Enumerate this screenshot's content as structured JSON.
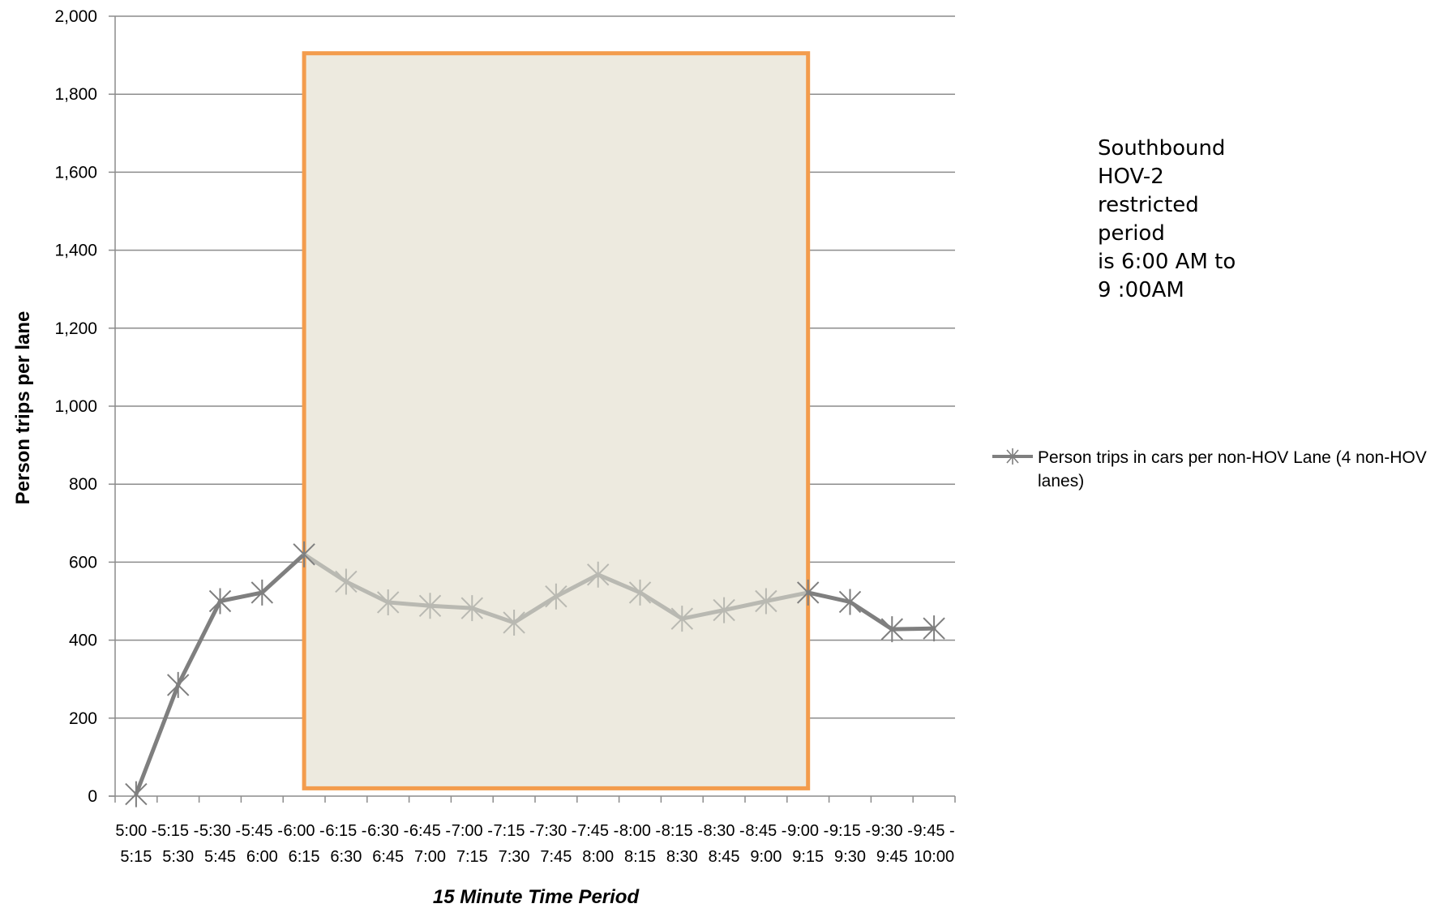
{
  "chart_data": {
    "type": "line",
    "title": "",
    "xlabel": "15 Minute Time Period",
    "ylabel": "Person trips per lane",
    "ylim": [
      0,
      2000
    ],
    "y_ticks": [
      "0",
      "200",
      "400",
      "600",
      "800",
      "1,000",
      "1,200",
      "1,400",
      "1,600",
      "1,800",
      "2,000"
    ],
    "y_tick_values": [
      0,
      200,
      400,
      600,
      800,
      1000,
      1200,
      1400,
      1600,
      1800,
      2000
    ],
    "grid": true,
    "legend_position": "right",
    "categories": [
      [
        "5:00 -",
        "5:15"
      ],
      [
        "5:15 -",
        "5:30"
      ],
      [
        "5:30 -",
        "5:45"
      ],
      [
        "5:45 -",
        "6:00"
      ],
      [
        "6:00 -",
        "6:15"
      ],
      [
        "6:15 -",
        "6:30"
      ],
      [
        "6:30 -",
        "6:45"
      ],
      [
        "6:45 -",
        "7:00"
      ],
      [
        "7:00 -",
        "7:15"
      ],
      [
        "7:15 -",
        "7:30"
      ],
      [
        "7:30 -",
        "7:45"
      ],
      [
        "7:45 -",
        "8:00"
      ],
      [
        "8:00 -",
        "8:15"
      ],
      [
        "8:15 -",
        "8:30"
      ],
      [
        "8:30 -",
        "8:45"
      ],
      [
        "8:45 -",
        "9:00"
      ],
      [
        "9:00 -",
        "9:15"
      ],
      [
        "9:15 -",
        "9:30"
      ],
      [
        "9:30 -",
        "9:45"
      ],
      [
        "9:45 -",
        "10:00"
      ]
    ],
    "series": [
      {
        "name": "Person trips in cars per non-HOV Lane (4 non-HOV lanes)",
        "color": "#7f7f7f",
        "highlight_color": "#b9b9b2",
        "marker": "asterisk",
        "values": [
          5,
          285,
          500,
          522,
          620,
          550,
          497,
          488,
          482,
          445,
          512,
          568,
          522,
          455,
          477,
          500,
          522,
          498,
          428,
          430
        ]
      }
    ],
    "highlight_region": {
      "from_index": 4,
      "to_index": 16,
      "y_range": [
        20,
        1905
      ],
      "fill": "#edeadf",
      "border": "#f39c4d"
    },
    "annotation": {
      "lines": [
        "Southbound",
        "HOV-2",
        "restricted",
        "period",
        "is 6:00 AM to",
        "9 :00AM"
      ]
    }
  }
}
